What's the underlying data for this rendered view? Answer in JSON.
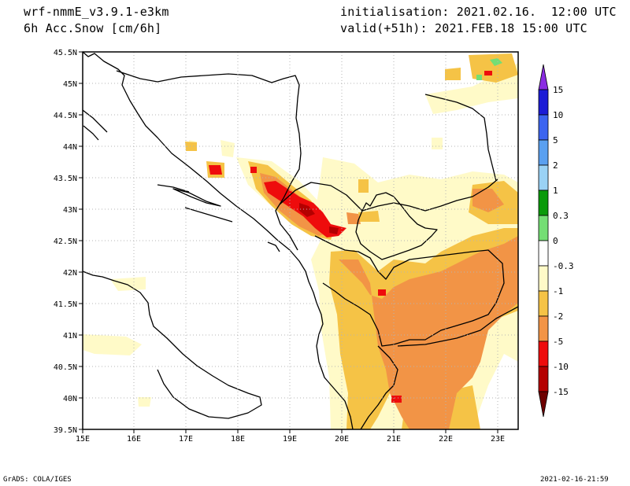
{
  "header": {
    "model": "wrf-nmmE_v3.9.1-e3km",
    "variable": "6h Acc.Snow [cm/6h]",
    "init": "initialisation: 2021.02.16.  12:00 UTC",
    "valid": "valid(+51h): 2021.FEB.18 15:00 UTC"
  },
  "footer": {
    "left": "GrADS: COLA/IGES",
    "right": "2021-02-16-21:59"
  },
  "map": {
    "lon_labels": [
      "15E",
      "16E",
      "17E",
      "18E",
      "19E",
      "20E",
      "21E",
      "22E",
      "23E"
    ],
    "lat_labels": [
      "39.5N",
      "40N",
      "40.5N",
      "41N",
      "41.5N",
      "42N",
      "42.5N",
      "43N",
      "43.5N",
      "44N",
      "44.5N",
      "45N",
      "45.5N"
    ]
  },
  "colorbar": {
    "labels": [
      "15",
      "10",
      "5",
      "2",
      "1",
      "0.3",
      "0",
      "-0.3",
      "-1",
      "-2",
      "-5",
      "-10",
      "-15"
    ],
    "colors": [
      "#1c1cd6",
      "#3c64f0",
      "#5aa0f0",
      "#9ad2f5",
      "#0a9a0a",
      "#74de74",
      "#ffffff",
      "#fffac8",
      "#f5c346",
      "#f29446",
      "#ee0c0c",
      "#b40000",
      "#7a0000"
    ],
    "top_triangle_color": "#8a2be2",
    "bottom_triangle_color": "#6e0000"
  },
  "snow_colors": {
    "light": "#fffac8",
    "moderate": "#f5c346",
    "heavy": "#f29446",
    "intense": "#ee0c0c",
    "extreme": "#b40000",
    "mix": "#74de74"
  }
}
